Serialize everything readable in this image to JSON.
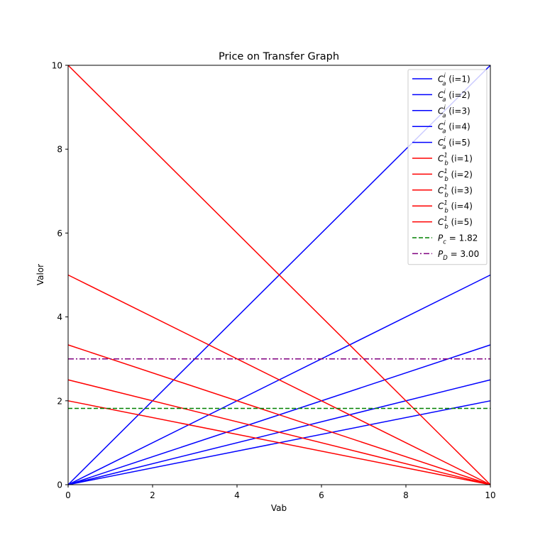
{
  "chart_data": {
    "type": "line",
    "title": "Price on Transfer Graph",
    "xlabel": "Vab",
    "ylabel": "Valor",
    "xlim": [
      0,
      10
    ],
    "ylim": [
      0,
      10
    ],
    "xticks": [
      0,
      2,
      4,
      6,
      8,
      10
    ],
    "yticks": [
      0,
      2,
      4,
      6,
      8,
      10
    ],
    "xtick_labels": [
      "0",
      "2",
      "4",
      "6",
      "8",
      "10"
    ],
    "ytick_labels": [
      "0",
      "2",
      "4",
      "6",
      "8",
      "10"
    ],
    "grid": false,
    "legend_position": "top-right",
    "series": [
      {
        "label_main": "C",
        "label_sub": "a",
        "label_sup": "i",
        "label_suffix": " (i=1)",
        "color": "#0000ff",
        "dash": "solid",
        "x": [
          0,
          10
        ],
        "y": [
          0,
          10
        ]
      },
      {
        "label_main": "C",
        "label_sub": "a",
        "label_sup": "i",
        "label_suffix": " (i=2)",
        "color": "#0000ff",
        "dash": "solid",
        "x": [
          0,
          10
        ],
        "y": [
          0,
          5
        ]
      },
      {
        "label_main": "C",
        "label_sub": "a",
        "label_sup": "i",
        "label_suffix": " (i=3)",
        "color": "#0000ff",
        "dash": "solid",
        "x": [
          0,
          10
        ],
        "y": [
          0,
          3.333
        ]
      },
      {
        "label_main": "C",
        "label_sub": "a",
        "label_sup": "i",
        "label_suffix": " (i=4)",
        "color": "#0000ff",
        "dash": "solid",
        "x": [
          0,
          10
        ],
        "y": [
          0,
          2.5
        ]
      },
      {
        "label_main": "C",
        "label_sub": "a",
        "label_sup": "i",
        "label_suffix": " (i=5)",
        "color": "#0000ff",
        "dash": "solid",
        "x": [
          0,
          10
        ],
        "y": [
          0,
          2
        ]
      },
      {
        "label_main": "C",
        "label_sub": "b",
        "label_sup": "1",
        "label_suffix": " (i=1)",
        "color": "#ff0000",
        "dash": "solid",
        "x": [
          0,
          10
        ],
        "y": [
          10,
          0
        ]
      },
      {
        "label_main": "C",
        "label_sub": "b",
        "label_sup": "1",
        "label_suffix": " (i=2)",
        "color": "#ff0000",
        "dash": "solid",
        "x": [
          0,
          10
        ],
        "y": [
          5,
          0
        ]
      },
      {
        "label_main": "C",
        "label_sub": "b",
        "label_sup": "1",
        "label_suffix": " (i=3)",
        "color": "#ff0000",
        "dash": "solid",
        "x": [
          0,
          10
        ],
        "y": [
          3.333,
          0
        ]
      },
      {
        "label_main": "C",
        "label_sub": "b",
        "label_sup": "1",
        "label_suffix": " (i=4)",
        "color": "#ff0000",
        "dash": "solid",
        "x": [
          0,
          10
        ],
        "y": [
          2.5,
          0
        ]
      },
      {
        "label_main": "C",
        "label_sub": "b",
        "label_sup": "1",
        "label_suffix": " (i=5)",
        "color": "#ff0000",
        "dash": "solid",
        "x": [
          0,
          10
        ],
        "y": [
          2,
          0
        ]
      },
      {
        "label_main": "P",
        "label_sub": "c",
        "label_sup": "",
        "label_suffix": " = 1.82",
        "color": "#008000",
        "dash": "dashed",
        "x": [
          0,
          10
        ],
        "y": [
          1.82,
          1.82
        ]
      },
      {
        "label_main": "P",
        "label_sub": "D",
        "label_sup": "",
        "label_suffix": " = 3.00",
        "color": "#800080",
        "dash": "dashdot",
        "x": [
          0,
          10
        ],
        "y": [
          3.0,
          3.0
        ]
      }
    ]
  }
}
